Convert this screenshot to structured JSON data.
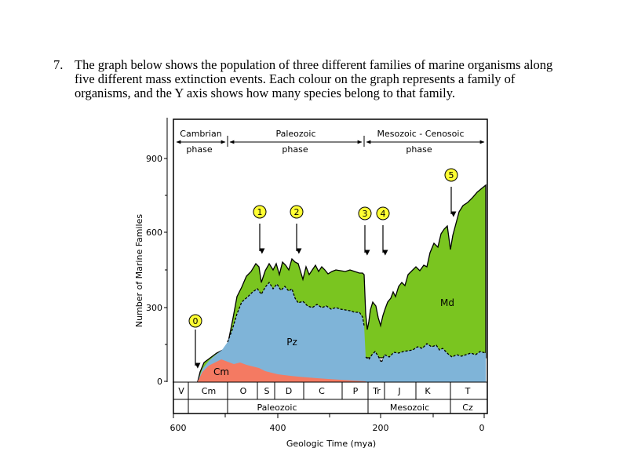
{
  "question": {
    "number": "7.",
    "line1": "The graph below shows the population of three different families of marine organisms along",
    "line2": "five different mass extinction events. Each colour on the graph represents a family of",
    "line3": "organisms, and the Y axis shows how many species belong to that family."
  },
  "phases": {
    "cambrian_1": "Cambrian",
    "cambrian_2": "phase",
    "paleozoic_1": "Paleozoic",
    "paleozoic_2": "phase",
    "mesozoic_1": "Mesozoic - Cenosoic",
    "mesozoic_2": "phase"
  },
  "events": [
    "0",
    "1",
    "2",
    "3",
    "4",
    "5"
  ],
  "families": {
    "cm": "Cm",
    "pz": "Pz",
    "md": "Md",
    "colors": {
      "cm": "#f47a62",
      "pz": "#7fb4d8",
      "md": "#7ac520"
    }
  },
  "y_axis": {
    "label": "Number of Marine Familes",
    "ticks": [
      "900",
      "600",
      "300",
      "0"
    ]
  },
  "periods": [
    "V",
    "Cm",
    "O",
    "S",
    "D",
    "C",
    "P",
    "Tr",
    "J",
    "K",
    "T"
  ],
  "eras": [
    "Paleozoic",
    "Mesozoic",
    "Cz"
  ],
  "x_axis": {
    "ticks": [
      "600",
      "400",
      "200",
      "0"
    ],
    "label": "Geologic Time (mya)"
  }
}
